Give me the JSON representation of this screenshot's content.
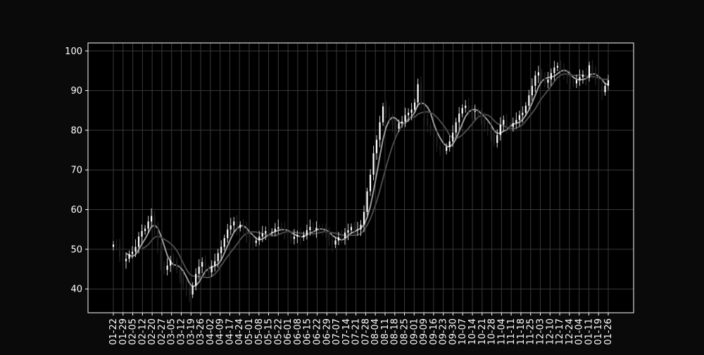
{
  "chart_data": {
    "type": "candlestick",
    "title": "",
    "xlabel": "",
    "ylabel": "",
    "ylim": [
      34,
      102
    ],
    "yticks": [
      40,
      50,
      60,
      70,
      80,
      90,
      100
    ],
    "grid": true,
    "x_tick_labels": [
      "01-22",
      "01-29",
      "02-05",
      "02-12",
      "02-20",
      "02-27",
      "03-05",
      "03-12",
      "03-19",
      "03-26",
      "04-02",
      "04-09",
      "04-17",
      "04-24",
      "05-01",
      "05-08",
      "05-15",
      "05-22",
      "06-01",
      "06-08",
      "06-15",
      "06-22",
      "06-29",
      "07-07",
      "07-14",
      "07-21",
      "07-28",
      "08-04",
      "08-11",
      "08-18",
      "08-25",
      "09-01",
      "09-09",
      "09-16",
      "09-23",
      "09-30",
      "10-07",
      "10-14",
      "10-21",
      "10-28",
      "11-04",
      "11-11",
      "11-18",
      "11-25",
      "12-03",
      "12-10",
      "12-17",
      "12-24",
      "01-04",
      "01-11",
      "01-19",
      "01-26"
    ],
    "close": [
      51.2,
      50.8,
      48.2,
      47.0,
      47.6,
      48.8,
      49.4,
      50.6,
      53.2,
      54.6,
      55.2,
      57.0,
      58.4,
      55.2,
      50.8,
      45.6,
      44.8,
      45.9,
      47.2,
      47.0,
      44.8,
      42.6,
      41.2,
      39.8,
      38.6,
      40.8,
      43.8,
      45.6,
      46.8,
      45.2,
      44.2,
      45.8,
      47.0,
      49.0,
      50.6,
      52.8,
      55.0,
      56.0,
      57.0,
      55.4,
      56.2,
      55.0,
      53.0,
      52.0,
      51.6,
      52.2,
      53.2,
      54.0,
      54.6,
      54.2,
      54.4,
      55.2,
      55.6,
      55.2,
      54.4,
      53.4,
      52.6,
      53.2,
      53.6,
      53.0,
      53.6,
      54.8,
      55.6,
      54.8,
      55.4,
      55.0,
      54.6,
      54.4,
      52.4,
      51.2,
      52.2,
      53.0,
      52.8,
      54.2,
      54.8,
      55.6,
      54.8,
      55.0,
      56.2,
      59.4,
      64.6,
      68.8,
      74.2,
      77.6,
      82.0,
      86.0,
      84.2,
      83.0,
      81.2,
      80.4,
      81.8,
      82.2,
      83.8,
      84.4,
      85.2,
      87.0,
      91.6,
      86.4,
      83.0,
      81.2,
      79.6,
      78.2,
      76.0,
      75.2,
      74.8,
      75.8,
      77.2,
      79.4,
      82.0,
      84.2,
      85.6,
      86.2,
      85.0,
      84.6,
      84.8,
      84.0,
      82.6,
      81.0,
      80.2,
      79.2,
      76.8,
      78.8,
      81.4,
      82.6,
      81.0,
      80.8,
      81.8,
      82.6,
      83.8,
      84.4,
      86.2,
      88.8,
      91.2,
      93.8,
      94.6,
      93.2,
      92.0,
      92.8,
      94.4,
      95.8,
      96.2,
      95.0,
      94.2,
      93.4,
      92.2,
      91.8,
      92.6,
      93.4,
      94.0,
      93.2,
      96.4,
      94.2,
      92.8,
      91.0,
      89.6,
      91.2,
      92.6
    ]
  }
}
